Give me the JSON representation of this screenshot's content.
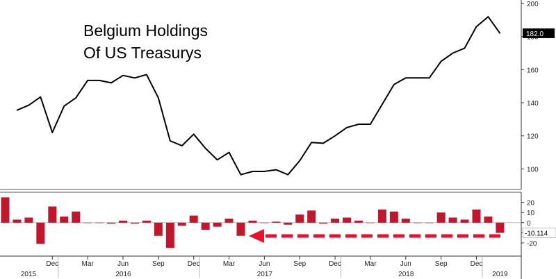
{
  "colors": {
    "line": "#000000",
    "bar": "#c0172c",
    "arrow": "#e8102a",
    "last_badge_bg": "#000000",
    "diff_badge_bg": "#ffffff",
    "separator": "#555555",
    "grid": "#b0b0b0"
  },
  "chart_data": [
    {
      "type": "line",
      "title": "Belgium Holdings\nOf US Treasurys",
      "title_lines": [
        "Belgium Holdings",
        "Of US Treasurys"
      ],
      "y_axis_side": "right",
      "ylim": [
        88,
        200
      ],
      "yticks": [
        100,
        120,
        140,
        160,
        180,
        200
      ],
      "ytick_labels": [
        "100",
        "120",
        "140",
        "160",
        "180",
        "200"
      ],
      "grid": false,
      "last_value_label": "182.0",
      "series": [
        {
          "x": [
            "2015-09",
            "2015-10",
            "2015-11",
            "2015-12",
            "2016-01",
            "2016-02",
            "2016-03",
            "2016-04",
            "2016-05",
            "2016-06",
            "2016-07",
            "2016-08",
            "2016-09",
            "2016-10",
            "2016-11",
            "2016-12",
            "2017-01",
            "2017-02",
            "2017-03",
            "2017-04",
            "2017-05",
            "2017-06",
            "2017-07",
            "2017-08",
            "2017-09",
            "2017-10",
            "2017-11",
            "2017-12",
            "2018-01",
            "2018-02",
            "2018-03",
            "2018-04",
            "2018-05",
            "2018-06",
            "2018-07",
            "2018-08",
            "2018-09",
            "2018-10",
            "2018-11",
            "2018-12",
            "2019-01",
            "2019-02"
          ],
          "values": [
            135.5,
            138.5,
            143.5,
            122,
            138,
            143,
            153.5,
            153.5,
            152,
            156.5,
            155,
            157,
            143,
            117,
            114,
            121,
            112.5,
            105.5,
            110,
            96.5,
            98.5,
            98.5,
            99.5,
            96.5,
            105,
            116,
            115.5,
            120,
            125,
            127,
            127,
            139,
            151,
            155,
            155,
            155,
            165,
            170,
            173,
            186,
            192,
            182
          ]
        }
      ]
    },
    {
      "type": "bar",
      "y_axis_side": "right",
      "ylim": [
        -31,
        28
      ],
      "yticks": [
        -20,
        -10,
        0,
        10,
        20
      ],
      "ytick_labels": [
        "-20",
        "-10",
        "0",
        "10",
        "20"
      ],
      "last_value_label": "-10.114",
      "x_tick_labels": [
        {
          "label": "Dec",
          "year": ""
        },
        {
          "label": "Mar",
          "year": ""
        },
        {
          "label": "Jun",
          "year": "2016"
        },
        {
          "label": "Sep",
          "year": ""
        },
        {
          "label": "Dec",
          "year": ""
        },
        {
          "label": "Mar",
          "year": ""
        },
        {
          "label": "Jun",
          "year": "2017"
        },
        {
          "label": "Sep",
          "year": ""
        },
        {
          "label": "Dec",
          "year": ""
        },
        {
          "label": "Mar",
          "year": ""
        },
        {
          "label": "Jun",
          "year": "2018"
        },
        {
          "label": "Sep",
          "year": ""
        },
        {
          "label": "Dec",
          "year": ""
        }
      ],
      "year_labels": [
        "2015",
        "2016",
        "2017",
        "2018",
        "2019"
      ],
      "series": [
        {
          "x": [
            "2015-08",
            "2015-09",
            "2015-10",
            "2015-11",
            "2015-12",
            "2016-01",
            "2016-02",
            "2016-03",
            "2016-04",
            "2016-05",
            "2016-06",
            "2016-07",
            "2016-08",
            "2016-09",
            "2016-10",
            "2016-11",
            "2016-12",
            "2017-01",
            "2017-02",
            "2017-03",
            "2017-04",
            "2017-05",
            "2017-06",
            "2017-07",
            "2017-08",
            "2017-09",
            "2017-10",
            "2017-11",
            "2017-12",
            "2018-01",
            "2018-02",
            "2018-03",
            "2018-04",
            "2018-05",
            "2018-06",
            "2018-07",
            "2018-08",
            "2018-09",
            "2018-10",
            "2018-11",
            "2018-12",
            "2019-01",
            "2019-02"
          ],
          "values": [
            25,
            3,
            5,
            -21,
            16,
            6,
            11,
            0,
            0,
            -1,
            2,
            -1,
            2,
            -13,
            -25,
            -3,
            7,
            -7,
            -4,
            4,
            -13,
            2,
            0,
            1,
            -2,
            8,
            12,
            -1,
            4,
            5,
            2,
            0,
            13,
            11,
            4,
            0,
            0,
            10,
            5,
            3,
            13,
            6,
            -10.114
          ]
        }
      ]
    }
  ]
}
